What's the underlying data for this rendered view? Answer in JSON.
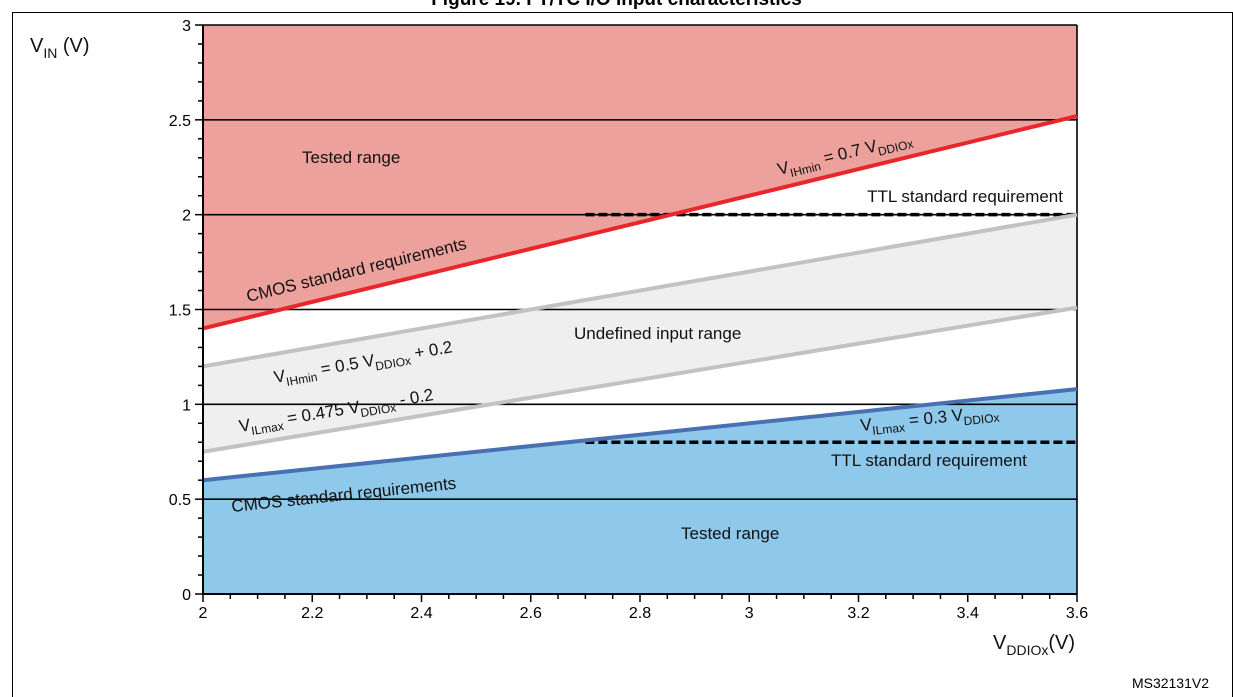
{
  "figure": {
    "title": "Figure 19. FT/TC I/O input characteristics",
    "id": "MS32131V2"
  },
  "colors": {
    "tested_high_fill": "#eca19c",
    "tested_low_fill": "#8ec8ea",
    "undefined_fill": "#efefef",
    "vih_line": "#e8262b",
    "vil_line": "#4a70b4",
    "band_line": "#c2c2c2"
  },
  "chart_data": {
    "type": "line",
    "xlabel": {
      "main": "V",
      "sub": "DDIOx",
      "suffix": "(V)"
    },
    "ylabel": {
      "main": "V",
      "sub": "IN",
      "suffix": " (V)"
    },
    "xlim": [
      2,
      3.6
    ],
    "ylim": [
      0,
      3
    ],
    "x_ticks": [
      "2",
      "2.2",
      "2.4",
      "2.6",
      "2.8",
      "3",
      "3.2",
      "3.4",
      "3.6"
    ],
    "y_ticks": [
      "0",
      "0.5",
      "1",
      "1.5",
      "2",
      "2.5",
      "3"
    ],
    "grid_y": [
      0.5,
      1,
      1.5,
      2,
      2.5,
      3
    ],
    "series": [
      {
        "name": "VIHmin = 0.7 VDDIOx",
        "x": [
          2,
          3.6
        ],
        "y": [
          1.4,
          2.52
        ]
      },
      {
        "name": "VIHmin = 0.5 VDDIOx + 0.2",
        "x": [
          2,
          3.6
        ],
        "y": [
          1.2,
          2.0
        ]
      },
      {
        "name": "VILmax = 0.475 VDDIOx - 0.2",
        "x": [
          2,
          3.6
        ],
        "y": [
          0.75,
          1.51
        ]
      },
      {
        "name": "VILmax = 0.3 VDDIOx",
        "x": [
          2,
          3.6
        ],
        "y": [
          0.6,
          1.08
        ]
      }
    ],
    "ttl_levels": [
      {
        "y": 2.0,
        "x": [
          2.7,
          3.6
        ]
      },
      {
        "y": 0.8,
        "x": [
          2.7,
          3.6
        ]
      }
    ],
    "annotations": {
      "tested_range_top": "Tested range",
      "tested_range_bottom": "Tested range",
      "cmos_top": "CMOS standard requirements",
      "cmos_bottom": "CMOS standard requirements",
      "ttl_top": "TTL standard requirement",
      "ttl_bottom": "TTL standard requirement",
      "undefined": "Undefined input range",
      "vih_07": {
        "main": "V",
        "sub": "IHmin",
        "mid": " = 0.7 V",
        "sub2": "DDIOx",
        "tail": ""
      },
      "vih_05": {
        "main": "V",
        "sub": "IHmin",
        "mid": " = 0.5 V",
        "sub2": "DDIOx",
        "tail": " + 0.2"
      },
      "vil_0475": {
        "main": "V",
        "sub": "ILmax",
        "mid": " = 0.475 V",
        "sub2": "DDIOx",
        "tail": " - 0.2"
      },
      "vil_03": {
        "main": "V",
        "sub": "ILmax",
        "mid": " = 0.3 V",
        "sub2": "DDIOx",
        "tail": ""
      }
    }
  }
}
